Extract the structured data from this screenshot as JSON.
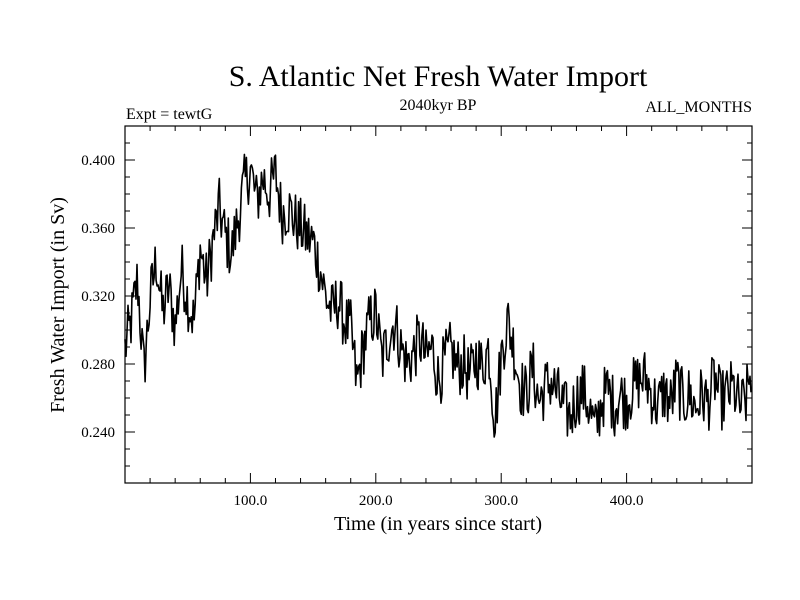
{
  "chart_data": {
    "type": "line",
    "title": "S. Atlantic Net Fresh Water Import",
    "subtitle_left": "Expt = tewtG",
    "subtitle_center": "2040kyr BP",
    "subtitle_right": "ALL_MONTHS",
    "xlabel": "Time (in years since start)",
    "ylabel": "Fresh Water Import (in Sv)",
    "xlim": [
      0,
      500
    ],
    "ylim": [
      0.21,
      0.42
    ],
    "xticks": [
      100,
      200,
      300,
      400
    ],
    "xtick_labels": [
      "100.0",
      "200.0",
      "300.0",
      "400.0"
    ],
    "yticks": [
      0.24,
      0.28,
      0.32,
      0.36,
      0.4
    ],
    "ytick_labels": [
      "0.240",
      "0.280",
      "0.320",
      "0.360",
      "0.400"
    ],
    "grid": false,
    "series": [
      {
        "name": "Fresh Water Import",
        "color": "#000000",
        "x": [
          0,
          5,
          10,
          15,
          20,
          25,
          30,
          35,
          40,
          45,
          50,
          55,
          60,
          65,
          70,
          75,
          80,
          85,
          90,
          95,
          100,
          105,
          110,
          115,
          120,
          125,
          130,
          135,
          140,
          145,
          150,
          155,
          160,
          165,
          170,
          175,
          180,
          185,
          190,
          195,
          200,
          205,
          210,
          215,
          220,
          225,
          230,
          235,
          240,
          245,
          250,
          255,
          260,
          265,
          270,
          275,
          280,
          285,
          290,
          295,
          300,
          305,
          310,
          315,
          320,
          325,
          330,
          335,
          340,
          345,
          350,
          355,
          360,
          365,
          370,
          375,
          380,
          385,
          390,
          395,
          400,
          405,
          410,
          415,
          420,
          425,
          430,
          435,
          440,
          445,
          450,
          455,
          460,
          465,
          470,
          475,
          480,
          485,
          490,
          495,
          500
        ],
        "values": [
          0.289,
          0.305,
          0.33,
          0.275,
          0.318,
          0.342,
          0.31,
          0.325,
          0.302,
          0.336,
          0.318,
          0.305,
          0.348,
          0.328,
          0.352,
          0.372,
          0.355,
          0.345,
          0.365,
          0.385,
          0.395,
          0.375,
          0.39,
          0.38,
          0.392,
          0.368,
          0.372,
          0.365,
          0.36,
          0.355,
          0.352,
          0.338,
          0.32,
          0.31,
          0.318,
          0.305,
          0.3,
          0.268,
          0.29,
          0.305,
          0.31,
          0.282,
          0.296,
          0.305,
          0.29,
          0.28,
          0.286,
          0.295,
          0.283,
          0.29,
          0.27,
          0.282,
          0.288,
          0.278,
          0.28,
          0.272,
          0.284,
          0.278,
          0.29,
          0.246,
          0.284,
          0.306,
          0.29,
          0.268,
          0.262,
          0.278,
          0.258,
          0.266,
          0.27,
          0.262,
          0.254,
          0.249,
          0.26,
          0.265,
          0.255,
          0.24,
          0.258,
          0.265,
          0.255,
          0.262,
          0.258,
          0.266,
          0.27,
          0.272,
          0.262,
          0.255,
          0.264,
          0.256,
          0.27,
          0.258,
          0.262,
          0.254,
          0.262,
          0.257,
          0.272,
          0.258,
          0.262,
          0.266,
          0.255,
          0.258,
          0.28
        ]
      }
    ]
  }
}
